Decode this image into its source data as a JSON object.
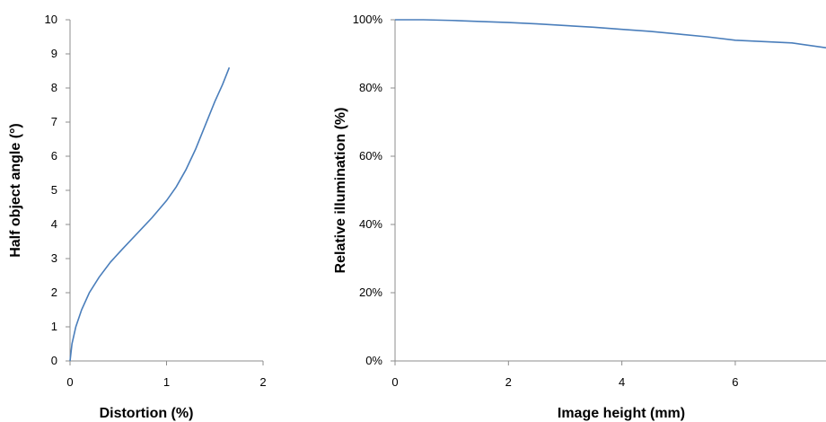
{
  "chart_data": [
    {
      "type": "line",
      "xlabel": "Distortion (%)",
      "ylabel": "Half object angle (°)",
      "xlim": [
        0,
        2
      ],
      "ylim": [
        0,
        10
      ],
      "xticks": [
        "0",
        "1",
        "2"
      ],
      "yticks": [
        "0",
        "1",
        "2",
        "3",
        "4",
        "5",
        "6",
        "7",
        "8",
        "9",
        "10"
      ],
      "grid": false,
      "legend": "none",
      "color": "#4a7ebb",
      "series": [
        {
          "x": [
            0,
            0.02,
            0.06,
            0.12,
            0.2,
            0.3,
            0.42,
            0.55,
            0.7,
            0.85,
            1.0,
            1.1,
            1.2,
            1.3,
            1.4,
            1.5,
            1.58,
            1.65
          ],
          "y": [
            0,
            0.5,
            1.0,
            1.5,
            2.0,
            2.45,
            2.9,
            3.3,
            3.75,
            4.2,
            4.7,
            5.1,
            5.6,
            6.2,
            6.9,
            7.6,
            8.1,
            8.6
          ]
        }
      ]
    },
    {
      "type": "line",
      "xlabel": "Image height (mm)",
      "ylabel": "Relative illumination (%)",
      "xlim": [
        0,
        7.6
      ],
      "ylim": [
        0,
        100
      ],
      "xticks": [
        "0",
        "2",
        "4",
        "6"
      ],
      "yticks": [
        "0%",
        "20%",
        "40%",
        "60%",
        "80%",
        "100%"
      ],
      "grid": false,
      "legend": "none",
      "color": "#4a7ebb",
      "series": [
        {
          "x": [
            0,
            0.5,
            1.0,
            1.5,
            2.0,
            2.5,
            3.0,
            3.5,
            4.0,
            4.5,
            5.0,
            5.5,
            6.0,
            6.5,
            7.0,
            7.6
          ],
          "y": [
            100,
            100,
            99.8,
            99.5,
            99.2,
            98.8,
            98.3,
            97.8,
            97.2,
            96.6,
            95.8,
            95.0,
            94.0,
            93.6,
            93.2,
            91.8
          ]
        }
      ]
    }
  ]
}
